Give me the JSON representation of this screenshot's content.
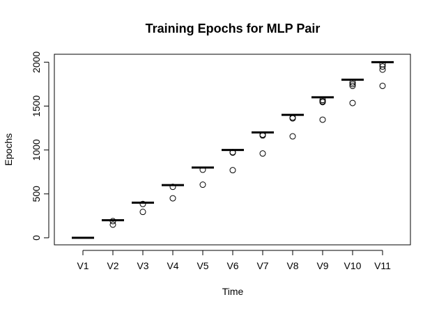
{
  "chart_data": {
    "type": "boxplot",
    "title": "Training Epochs for MLP Pair",
    "xlabel": "Time",
    "ylabel": "Epochs",
    "categories": [
      "V1",
      "V2",
      "V3",
      "V4",
      "V5",
      "V6",
      "V7",
      "V8",
      "V9",
      "V10",
      "V11"
    ],
    "medians": [
      0,
      200,
      400,
      600,
      800,
      1000,
      1200,
      1400,
      1600,
      1800,
      2000
    ],
    "outliers": [
      [],
      [
        190,
        150
      ],
      [
        385,
        295
      ],
      [
        580,
        450
      ],
      [
        775,
        605
      ],
      [
        975,
        970,
        770
      ],
      [
        1175,
        1165,
        960
      ],
      [
        1370,
        1360,
        1155
      ],
      [
        1570,
        1555,
        1545,
        1345
      ],
      [
        1770,
        1750,
        1730,
        1535
      ],
      [
        1975,
        1950,
        1915,
        1730
      ]
    ],
    "yticks": [
      0,
      500,
      1000,
      1500,
      2000
    ],
    "ylim": [
      -80,
      2090
    ],
    "grid": false,
    "legend": "none"
  }
}
